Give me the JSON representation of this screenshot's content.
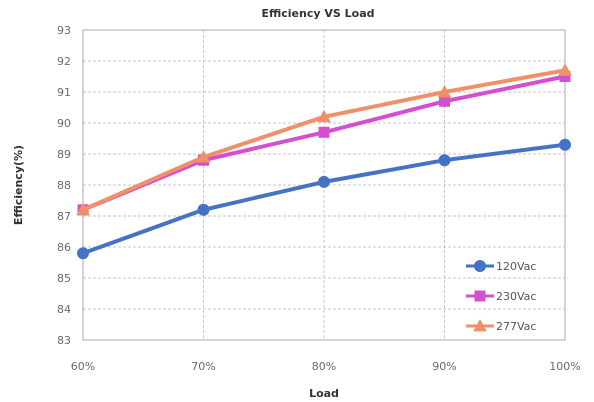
{
  "chart_data": {
    "type": "line",
    "title": "Efficiency VS Load",
    "xlabel": "Load",
    "ylabel": "Efficiency(%)",
    "categories": [
      "60%",
      "70%",
      "80%",
      "90%",
      "100%"
    ],
    "ylim": [
      83,
      93
    ],
    "yticks": [
      83,
      84,
      85,
      86,
      87,
      88,
      89,
      90,
      91,
      92,
      93
    ],
    "grid": true,
    "legend_position": "bottom-right",
    "series": [
      {
        "name": "120Vac",
        "color": "#4472C4",
        "marker": "circle",
        "values": [
          85.8,
          87.2,
          88.1,
          88.8,
          89.3
        ]
      },
      {
        "name": "230Vac",
        "color": "#D34FD0",
        "marker": "square",
        "values": [
          87.2,
          88.8,
          89.7,
          90.7,
          91.5
        ]
      },
      {
        "name": "277Vac",
        "color": "#F0906A",
        "marker": "triangle",
        "values": [
          87.2,
          88.9,
          90.2,
          91.0,
          91.7
        ]
      }
    ]
  }
}
